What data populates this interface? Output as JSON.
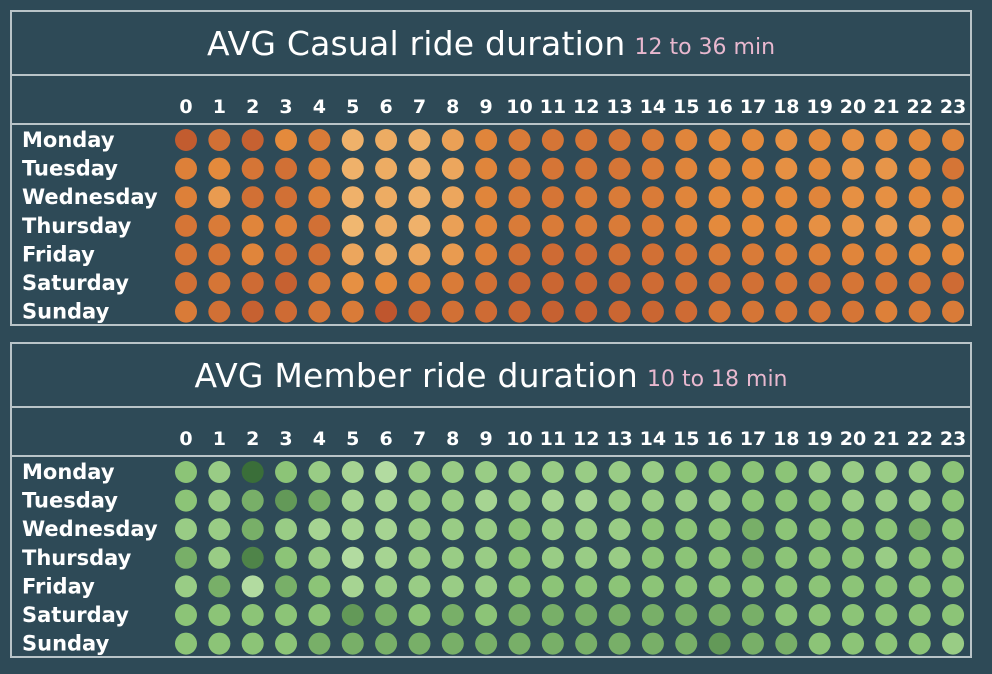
{
  "colors": {
    "background": "#2e4a57",
    "border": "#b9c4c8",
    "range_text": "#e8b8cf"
  },
  "chart_data": [
    {
      "type": "heatmap",
      "title": "AVG Casual ride duration",
      "subtitle": "12 to 36 min",
      "value_range": [
        12,
        36
      ],
      "palette": [
        "#f6cd8a",
        "#e48a3c",
        "#b74c2b"
      ],
      "x": [
        "0",
        "1",
        "2",
        "3",
        "4",
        "5",
        "6",
        "7",
        "8",
        "9",
        "10",
        "11",
        "12",
        "13",
        "14",
        "15",
        "16",
        "17",
        "18",
        "19",
        "20",
        "21",
        "22",
        "23"
      ],
      "y": [
        "Monday",
        "Tuesday",
        "Wednesday",
        "Thursday",
        "Friday",
        "Saturday",
        "Sunday"
      ],
      "values": [
        [
          33,
          29,
          32,
          24,
          27,
          17,
          18,
          17,
          20,
          25,
          27,
          28,
          28,
          28,
          27,
          25,
          24,
          24,
          23,
          24,
          23,
          23,
          24,
          25
        ],
        [
          26,
          24,
          28,
          29,
          26,
          17,
          18,
          17,
          19,
          25,
          27,
          28,
          28,
          28,
          27,
          25,
          24,
          24,
          23,
          24,
          22,
          22,
          24,
          28
        ],
        [
          26,
          21,
          29,
          29,
          26,
          17,
          18,
          17,
          19,
          25,
          27,
          28,
          27,
          27,
          27,
          25,
          24,
          24,
          24,
          25,
          23,
          23,
          24,
          25
        ],
        [
          28,
          27,
          25,
          26,
          29,
          16,
          18,
          17,
          20,
          25,
          27,
          27,
          27,
          27,
          27,
          25,
          24,
          24,
          24,
          23,
          22,
          21,
          22,
          23
        ],
        [
          28,
          28,
          25,
          29,
          29,
          19,
          18,
          19,
          21,
          26,
          29,
          30,
          30,
          29,
          29,
          28,
          27,
          27,
          26,
          26,
          25,
          25,
          24,
          24
        ],
        [
          29,
          28,
          30,
          32,
          27,
          23,
          24,
          26,
          27,
          29,
          31,
          31,
          31,
          31,
          30,
          29,
          29,
          29,
          28,
          29,
          28,
          28,
          28,
          30
        ],
        [
          27,
          29,
          32,
          30,
          28,
          27,
          34,
          31,
          29,
          30,
          31,
          32,
          32,
          31,
          31,
          30,
          28,
          28,
          28,
          28,
          28,
          26,
          27,
          27
        ]
      ]
    },
    {
      "type": "heatmap",
      "title": "AVG Member ride duration",
      "subtitle": "10 to 18 min",
      "value_range": [
        10,
        18
      ],
      "palette": [
        "#bfe3ad",
        "#8cc477",
        "#3a6e39"
      ],
      "x": [
        "0",
        "1",
        "2",
        "3",
        "4",
        "5",
        "6",
        "7",
        "8",
        "9",
        "10",
        "11",
        "12",
        "13",
        "14",
        "15",
        "16",
        "17",
        "18",
        "19",
        "20",
        "21",
        "22",
        "23"
      ],
      "y": [
        "Monday",
        "Tuesday",
        "Wednesday",
        "Thursday",
        "Friday",
        "Saturday",
        "Sunday"
      ],
      "values": [
        [
          14,
          13,
          18,
          14,
          13,
          12,
          11,
          13,
          13,
          13,
          13,
          13,
          13,
          13,
          13,
          14,
          14,
          14,
          14,
          13,
          13,
          13,
          13,
          14
        ],
        [
          14,
          13,
          15,
          16,
          15,
          12,
          12,
          13,
          13,
          12,
          13,
          12,
          12,
          13,
          13,
          13,
          13,
          14,
          14,
          14,
          13,
          13,
          13,
          14
        ],
        [
          13,
          13,
          15,
          13,
          12,
          12,
          12,
          13,
          13,
          13,
          14,
          13,
          13,
          13,
          14,
          14,
          14,
          15,
          14,
          14,
          14,
          14,
          15,
          14
        ],
        [
          15,
          13,
          17,
          14,
          13,
          11,
          12,
          13,
          13,
          13,
          14,
          13,
          13,
          13,
          14,
          14,
          14,
          15,
          14,
          14,
          14,
          13,
          14,
          14
        ],
        [
          13,
          15,
          11,
          15,
          14,
          12,
          13,
          13,
          13,
          13,
          14,
          14,
          14,
          14,
          14,
          14,
          14,
          14,
          14,
          14,
          14,
          14,
          14,
          14
        ],
        [
          14,
          14,
          14,
          14,
          14,
          16,
          15,
          14,
          15,
          14,
          15,
          15,
          15,
          15,
          15,
          15,
          15,
          15,
          14,
          14,
          14,
          14,
          14,
          14
        ],
        [
          14,
          14,
          14,
          14,
          15,
          15,
          15,
          15,
          15,
          15,
          15,
          15,
          15,
          15,
          15,
          15,
          16,
          15,
          15,
          14,
          14,
          14,
          14,
          13
        ]
      ]
    }
  ]
}
